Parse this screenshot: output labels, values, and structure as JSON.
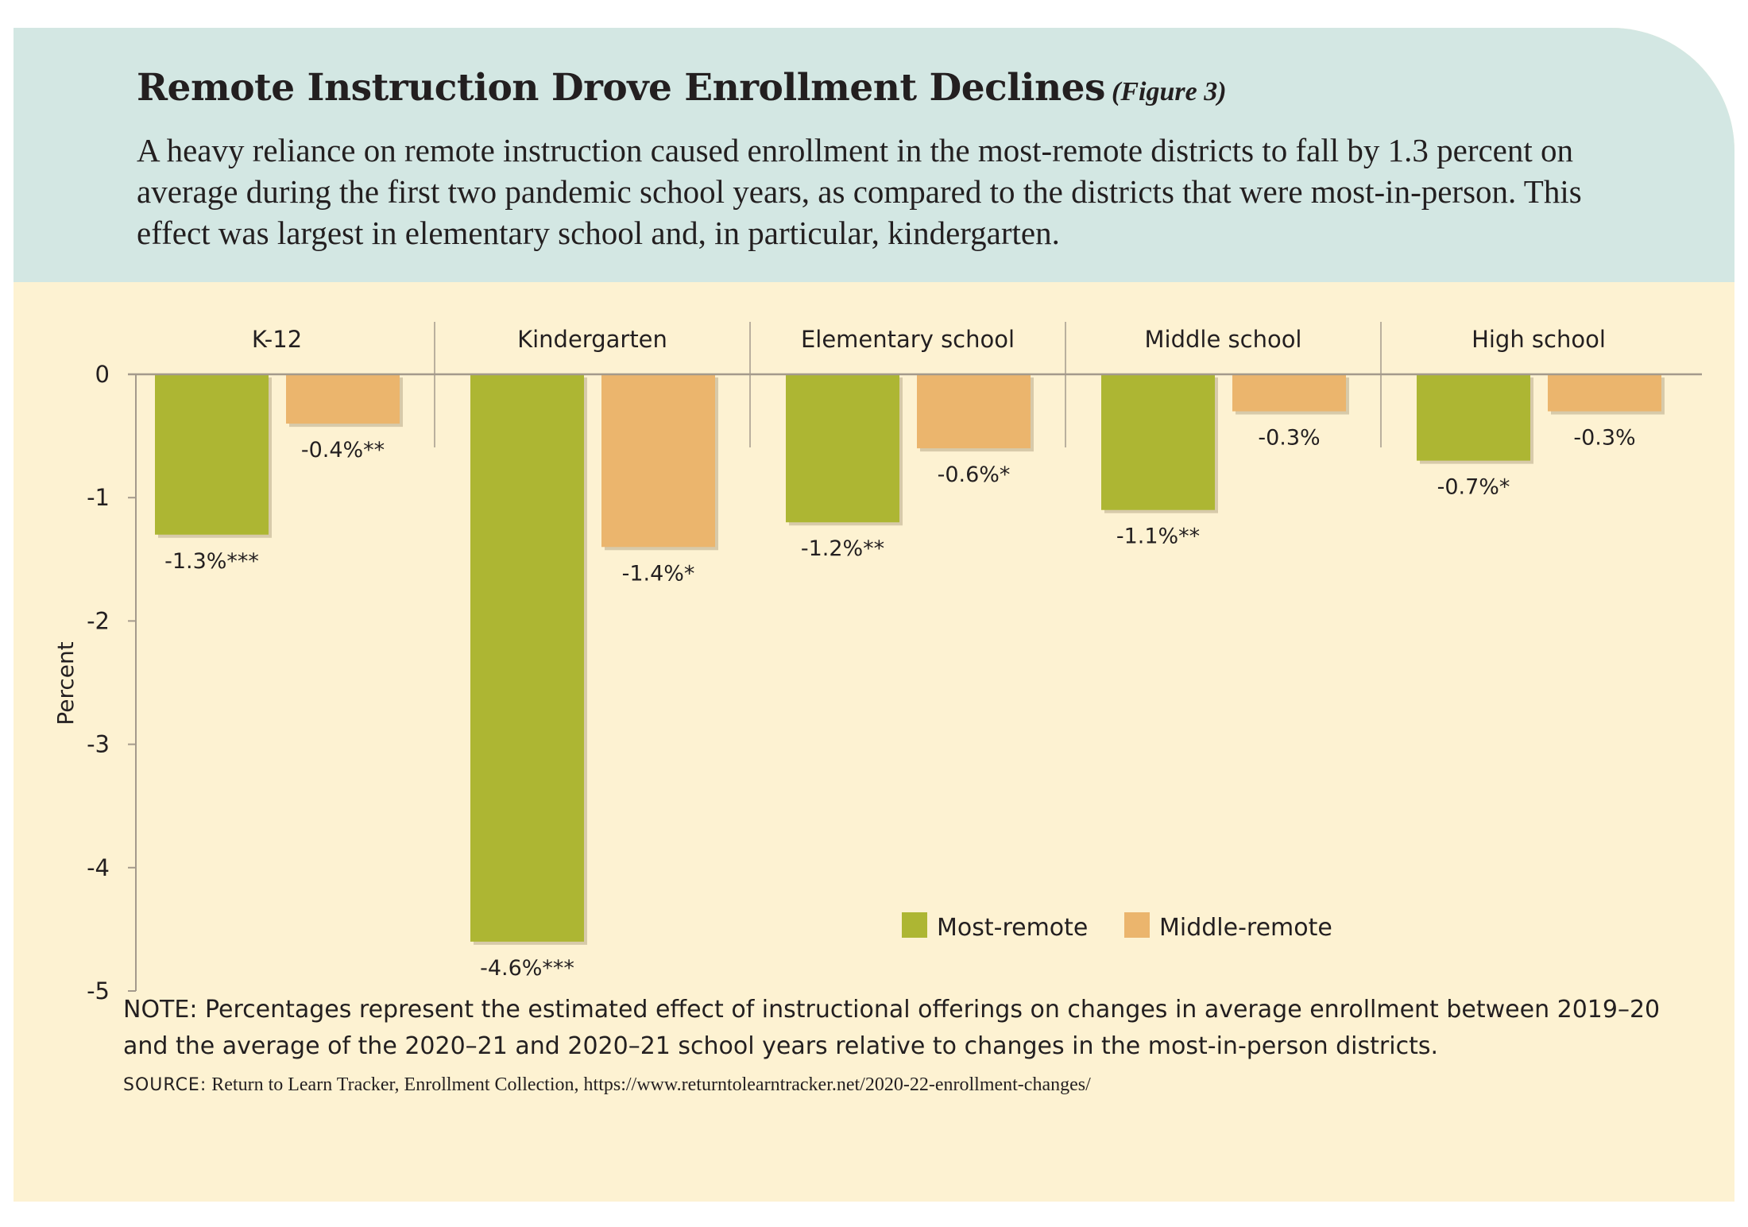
{
  "header": {
    "title": "Remote Instruction Drove Enrollment Declines",
    "figure_tag": "(Figure 3)",
    "subtitle": "A heavy reliance on remote instruction caused enrollment in the most-remote districts to fall by 1.3 percent on average during the first two pandemic school years, as compared to the districts that were most-in-person. This effect was largest in elementary school and, in particular, kindergarten."
  },
  "colors": {
    "header_bg": "#d3e7e3",
    "card_bg": "#fdf2d2",
    "most_remote": "#adb633",
    "middle_remote": "#ebb56d",
    "axis": "#a49a8c"
  },
  "chart_data": {
    "type": "bar",
    "categories": [
      "K-12",
      "Kindergarten",
      "Elementary school",
      "Middle school",
      "High school"
    ],
    "series": [
      {
        "name": "Most-remote",
        "values": [
          -1.3,
          -4.6,
          -1.2,
          -1.1,
          -0.7
        ],
        "labels": [
          "-1.3%***",
          "-4.6%***",
          "-1.2%**",
          "-1.1%**",
          "-0.7%*"
        ]
      },
      {
        "name": "Middle-remote",
        "values": [
          -0.4,
          -1.4,
          -0.6,
          -0.3,
          -0.3
        ],
        "labels": [
          "-0.4%**",
          "-1.4%*",
          "-0.6%*",
          "-0.3%",
          "-0.3%"
        ]
      }
    ],
    "ylabel": "Percent",
    "ylim": [
      -5,
      0
    ],
    "yticks": [
      0,
      -1,
      -2,
      -3,
      -4,
      -5
    ],
    "legend_position": "bottom-right",
    "grid": false
  },
  "footer": {
    "note": "NOTE: Percentages represent the estimated effect of instructional offerings on changes in average enrollment between 2019–20 and the average of the 2020–21 and 2020–21 school years relative to changes in the most-in-person districts.",
    "source_label": "SOURCE:",
    "source_text": "Return to Learn Tracker, Enrollment Collection, https://www.returntolearntracker.net/2020-22-enrollment-changes/"
  }
}
